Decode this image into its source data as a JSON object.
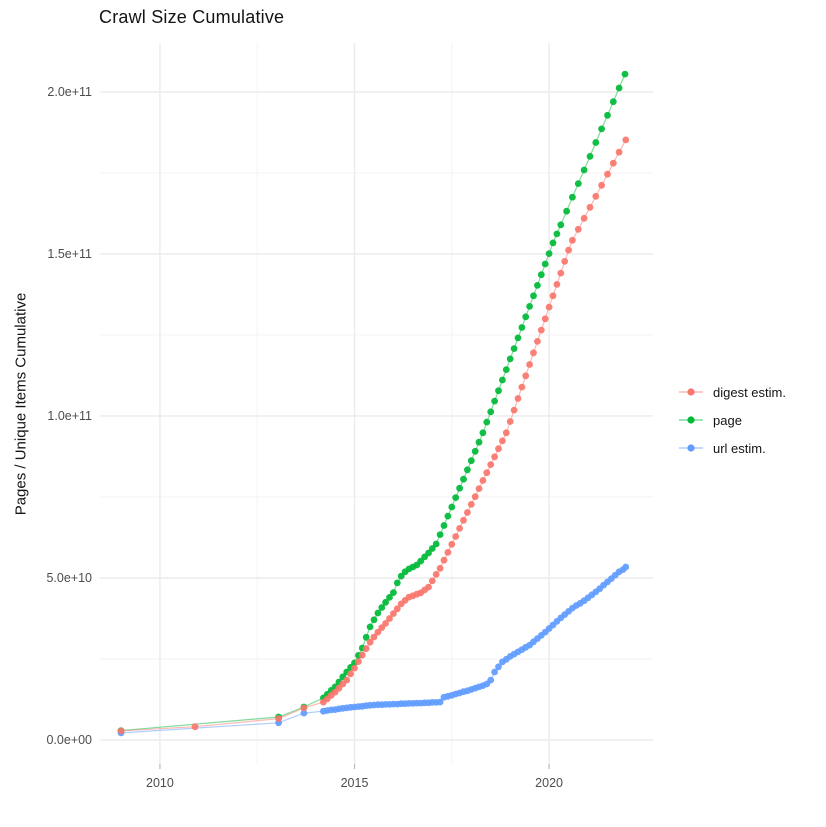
{
  "title": "Crawl Size Cumulative",
  "chart_data": {
    "type": "scatter",
    "title": "Crawl Size Cumulative",
    "xlabel": "",
    "ylabel": "Pages / Unique Items Cumulative",
    "legend_position": "right",
    "grid": "on",
    "value_unit": "pages, values stored in billions (1e9)",
    "xlim": [
      2008.46,
      2022.67
    ],
    "ylim_e9": [
      -7.4,
      215.1
    ],
    "x_ticks": {
      "values": [
        2010,
        2015,
        2020
      ],
      "labels": [
        "2010",
        "2015",
        "2020"
      ]
    },
    "y_ticks": {
      "values_e9": [
        0,
        50,
        100,
        150,
        200
      ],
      "labels": [
        "0.0e+00",
        "5.0e+10",
        "1.0e+11",
        "1.5e+11",
        "2.0e+11"
      ]
    },
    "x_minor": [
      2012.5,
      2017.5
    ],
    "y_minor_e9": [
      25,
      75,
      125,
      175
    ],
    "colors": {
      "digest": "#F8766D",
      "page": "#00BA38",
      "url": "#619CFF",
      "gridline": "#EBEBEB",
      "tick_text": "#4D4D4D"
    },
    "series": [
      {
        "name": "digest estim.",
        "color": "#F8766D",
        "points": [
          [
            2009.0,
            2.8
          ],
          [
            2010.9,
            4.1
          ],
          [
            2013.05,
            6.6
          ],
          [
            2013.7,
            9.9
          ],
          [
            2014.2,
            11.7
          ],
          [
            2014.3,
            12.7
          ],
          [
            2014.4,
            13.8
          ],
          [
            2014.5,
            14.8
          ],
          [
            2014.6,
            16.0
          ],
          [
            2014.7,
            17.3
          ],
          [
            2014.8,
            18.5
          ],
          [
            2014.9,
            20.4
          ],
          [
            2015.0,
            22.2
          ],
          [
            2015.1,
            24.2
          ],
          [
            2015.2,
            26.2
          ],
          [
            2015.3,
            28.2
          ],
          [
            2015.4,
            30.2
          ],
          [
            2015.5,
            31.8
          ],
          [
            2015.6,
            33.3
          ],
          [
            2015.7,
            34.7
          ],
          [
            2015.8,
            36.0
          ],
          [
            2015.9,
            37.5
          ],
          [
            2016.0,
            39.0
          ],
          [
            2016.1,
            40.5
          ],
          [
            2016.2,
            42.0
          ],
          [
            2016.3,
            43.1
          ],
          [
            2016.4,
            44.1
          ],
          [
            2016.5,
            44.5
          ],
          [
            2016.6,
            45.0
          ],
          [
            2016.7,
            45.4
          ],
          [
            2016.8,
            46.3
          ],
          [
            2016.9,
            47.2
          ],
          [
            2017.0,
            49.1
          ],
          [
            2017.1,
            51.1
          ],
          [
            2017.2,
            53.0
          ],
          [
            2017.3,
            55.5
          ],
          [
            2017.4,
            57.9
          ],
          [
            2017.5,
            60.4
          ],
          [
            2017.6,
            62.8
          ],
          [
            2017.7,
            65.3
          ],
          [
            2017.8,
            67.8
          ],
          [
            2017.9,
            70.2
          ],
          [
            2018.0,
            72.7
          ],
          [
            2018.1,
            75.1
          ],
          [
            2018.2,
            77.6
          ],
          [
            2018.3,
            80.1
          ],
          [
            2018.4,
            82.5
          ],
          [
            2018.5,
            85.0
          ],
          [
            2018.6,
            87.4
          ],
          [
            2018.7,
            89.9
          ],
          [
            2018.8,
            92.3
          ],
          [
            2018.9,
            94.8
          ],
          [
            2019.0,
            98.3
          ],
          [
            2019.1,
            101.8
          ],
          [
            2019.2,
            105.4
          ],
          [
            2019.3,
            108.9
          ],
          [
            2019.4,
            112.4
          ],
          [
            2019.5,
            115.9
          ],
          [
            2019.6,
            119.5
          ],
          [
            2019.7,
            123.0
          ],
          [
            2019.8,
            126.5
          ],
          [
            2019.9,
            130.0
          ],
          [
            2020.0,
            133.6
          ],
          [
            2020.1,
            137.1
          ],
          [
            2020.2,
            140.6
          ],
          [
            2020.3,
            144.1
          ],
          [
            2020.4,
            147.7
          ],
          [
            2020.5,
            151.2
          ],
          [
            2020.6,
            154.2
          ],
          [
            2020.75,
            157.6
          ],
          [
            2020.9,
            161.0
          ],
          [
            2021.05,
            164.4
          ],
          [
            2021.2,
            167.8
          ],
          [
            2021.35,
            171.2
          ],
          [
            2021.5,
            174.6
          ],
          [
            2021.65,
            178.0
          ],
          [
            2021.8,
            181.4
          ],
          [
            2021.97,
            185.2
          ]
        ]
      },
      {
        "name": "page",
        "color": "#00BA38",
        "points": [
          [
            2009.0,
            2.9
          ],
          [
            2013.05,
            7.1
          ],
          [
            2013.7,
            10.2
          ],
          [
            2014.2,
            13.0
          ],
          [
            2014.3,
            14.1
          ],
          [
            2014.4,
            15.3
          ],
          [
            2014.5,
            16.4
          ],
          [
            2014.6,
            17.9
          ],
          [
            2014.7,
            19.5
          ],
          [
            2014.8,
            21.0
          ],
          [
            2014.9,
            22.4
          ],
          [
            2015.0,
            23.8
          ],
          [
            2015.1,
            26.1
          ],
          [
            2015.2,
            28.4
          ],
          [
            2015.3,
            31.7
          ],
          [
            2015.4,
            34.9
          ],
          [
            2015.5,
            37.1
          ],
          [
            2015.6,
            39.2
          ],
          [
            2015.7,
            40.9
          ],
          [
            2015.8,
            42.5
          ],
          [
            2015.9,
            44.0
          ],
          [
            2016.0,
            45.5
          ],
          [
            2016.1,
            48.5
          ],
          [
            2016.2,
            50.6
          ],
          [
            2016.3,
            51.9
          ],
          [
            2016.4,
            52.8
          ],
          [
            2016.5,
            53.4
          ],
          [
            2016.6,
            54.0
          ],
          [
            2016.7,
            55.2
          ],
          [
            2016.8,
            56.5
          ],
          [
            2016.9,
            57.7
          ],
          [
            2017.0,
            59.1
          ],
          [
            2017.1,
            60.5
          ],
          [
            2017.2,
            63.4
          ],
          [
            2017.3,
            66.2
          ],
          [
            2017.4,
            69.1
          ],
          [
            2017.5,
            71.9
          ],
          [
            2017.6,
            74.8
          ],
          [
            2017.7,
            77.7
          ],
          [
            2017.8,
            80.5
          ],
          [
            2017.9,
            83.4
          ],
          [
            2018.0,
            86.2
          ],
          [
            2018.1,
            89.1
          ],
          [
            2018.2,
            91.9
          ],
          [
            2018.3,
            94.8
          ],
          [
            2018.4,
            98.1
          ],
          [
            2018.5,
            101.3
          ],
          [
            2018.6,
            104.6
          ],
          [
            2018.7,
            107.8
          ],
          [
            2018.8,
            111.1
          ],
          [
            2018.9,
            114.3
          ],
          [
            2019.0,
            117.6
          ],
          [
            2019.1,
            120.8
          ],
          [
            2019.2,
            124.1
          ],
          [
            2019.3,
            127.3
          ],
          [
            2019.4,
            130.6
          ],
          [
            2019.5,
            133.8
          ],
          [
            2019.6,
            137.1
          ],
          [
            2019.7,
            140.3
          ],
          [
            2019.8,
            143.6
          ],
          [
            2019.9,
            146.9
          ],
          [
            2020.0,
            150.1
          ],
          [
            2020.1,
            153.4
          ],
          [
            2020.2,
            156.2
          ],
          [
            2020.3,
            159.0
          ],
          [
            2020.45,
            163.2
          ],
          [
            2020.6,
            167.5
          ],
          [
            2020.75,
            171.7
          ],
          [
            2020.9,
            175.9
          ],
          [
            2021.05,
            180.1
          ],
          [
            2021.2,
            184.4
          ],
          [
            2021.35,
            188.6
          ],
          [
            2021.5,
            192.8
          ],
          [
            2021.65,
            197.0
          ],
          [
            2021.8,
            201.2
          ],
          [
            2021.95,
            205.5
          ]
        ]
      },
      {
        "name": "url estim.",
        "color": "#619CFF",
        "points": [
          [
            2009.0,
            2.2
          ],
          [
            2013.05,
            5.3
          ],
          [
            2013.7,
            8.3
          ],
          [
            2014.2,
            8.9
          ],
          [
            2014.3,
            9.1
          ],
          [
            2014.4,
            9.3
          ],
          [
            2014.5,
            9.4
          ],
          [
            2014.6,
            9.6
          ],
          [
            2014.7,
            9.8
          ],
          [
            2014.8,
            9.9
          ],
          [
            2014.9,
            10.1
          ],
          [
            2015.0,
            10.2
          ],
          [
            2015.1,
            10.3
          ],
          [
            2015.2,
            10.4
          ],
          [
            2015.3,
            10.6
          ],
          [
            2015.4,
            10.7
          ],
          [
            2015.5,
            10.8
          ],
          [
            2015.6,
            10.9
          ],
          [
            2015.7,
            10.9
          ],
          [
            2015.8,
            11.0
          ],
          [
            2015.9,
            11.0
          ],
          [
            2016.0,
            11.1
          ],
          [
            2016.1,
            11.1
          ],
          [
            2016.2,
            11.2
          ],
          [
            2016.3,
            11.2
          ],
          [
            2016.4,
            11.3
          ],
          [
            2016.5,
            11.3
          ],
          [
            2016.6,
            11.4
          ],
          [
            2016.7,
            11.4
          ],
          [
            2016.8,
            11.5
          ],
          [
            2016.9,
            11.5
          ],
          [
            2017.0,
            11.6
          ],
          [
            2017.1,
            11.6
          ],
          [
            2017.2,
            11.7
          ],
          [
            2017.3,
            13.2
          ],
          [
            2017.4,
            13.5
          ],
          [
            2017.5,
            13.8
          ],
          [
            2017.6,
            14.2
          ],
          [
            2017.7,
            14.5
          ],
          [
            2017.8,
            14.9
          ],
          [
            2017.9,
            15.2
          ],
          [
            2018.0,
            15.6
          ],
          [
            2018.1,
            16.0
          ],
          [
            2018.2,
            16.4
          ],
          [
            2018.3,
            16.8
          ],
          [
            2018.4,
            17.3
          ],
          [
            2018.5,
            18.5
          ],
          [
            2018.6,
            21.0
          ],
          [
            2018.7,
            22.6
          ],
          [
            2018.8,
            24.1
          ],
          [
            2018.9,
            24.9
          ],
          [
            2019.0,
            25.8
          ],
          [
            2019.1,
            26.5
          ],
          [
            2019.2,
            27.2
          ],
          [
            2019.3,
            27.9
          ],
          [
            2019.4,
            28.6
          ],
          [
            2019.5,
            29.3
          ],
          [
            2019.6,
            30.3
          ],
          [
            2019.7,
            31.3
          ],
          [
            2019.8,
            32.3
          ],
          [
            2019.9,
            33.3
          ],
          [
            2020.0,
            34.4
          ],
          [
            2020.1,
            35.5
          ],
          [
            2020.2,
            36.6
          ],
          [
            2020.3,
            37.7
          ],
          [
            2020.4,
            38.7
          ],
          [
            2020.5,
            39.7
          ],
          [
            2020.6,
            40.7
          ],
          [
            2020.7,
            41.5
          ],
          [
            2020.8,
            42.2
          ],
          [
            2020.9,
            43.0
          ],
          [
            2021.0,
            43.9
          ],
          [
            2021.1,
            44.8
          ],
          [
            2021.2,
            45.7
          ],
          [
            2021.3,
            46.7
          ],
          [
            2021.4,
            47.8
          ],
          [
            2021.5,
            48.8
          ],
          [
            2021.6,
            49.8
          ],
          [
            2021.7,
            50.9
          ],
          [
            2021.8,
            51.9
          ],
          [
            2021.9,
            52.6
          ],
          [
            2021.97,
            53.4
          ]
        ]
      }
    ]
  }
}
